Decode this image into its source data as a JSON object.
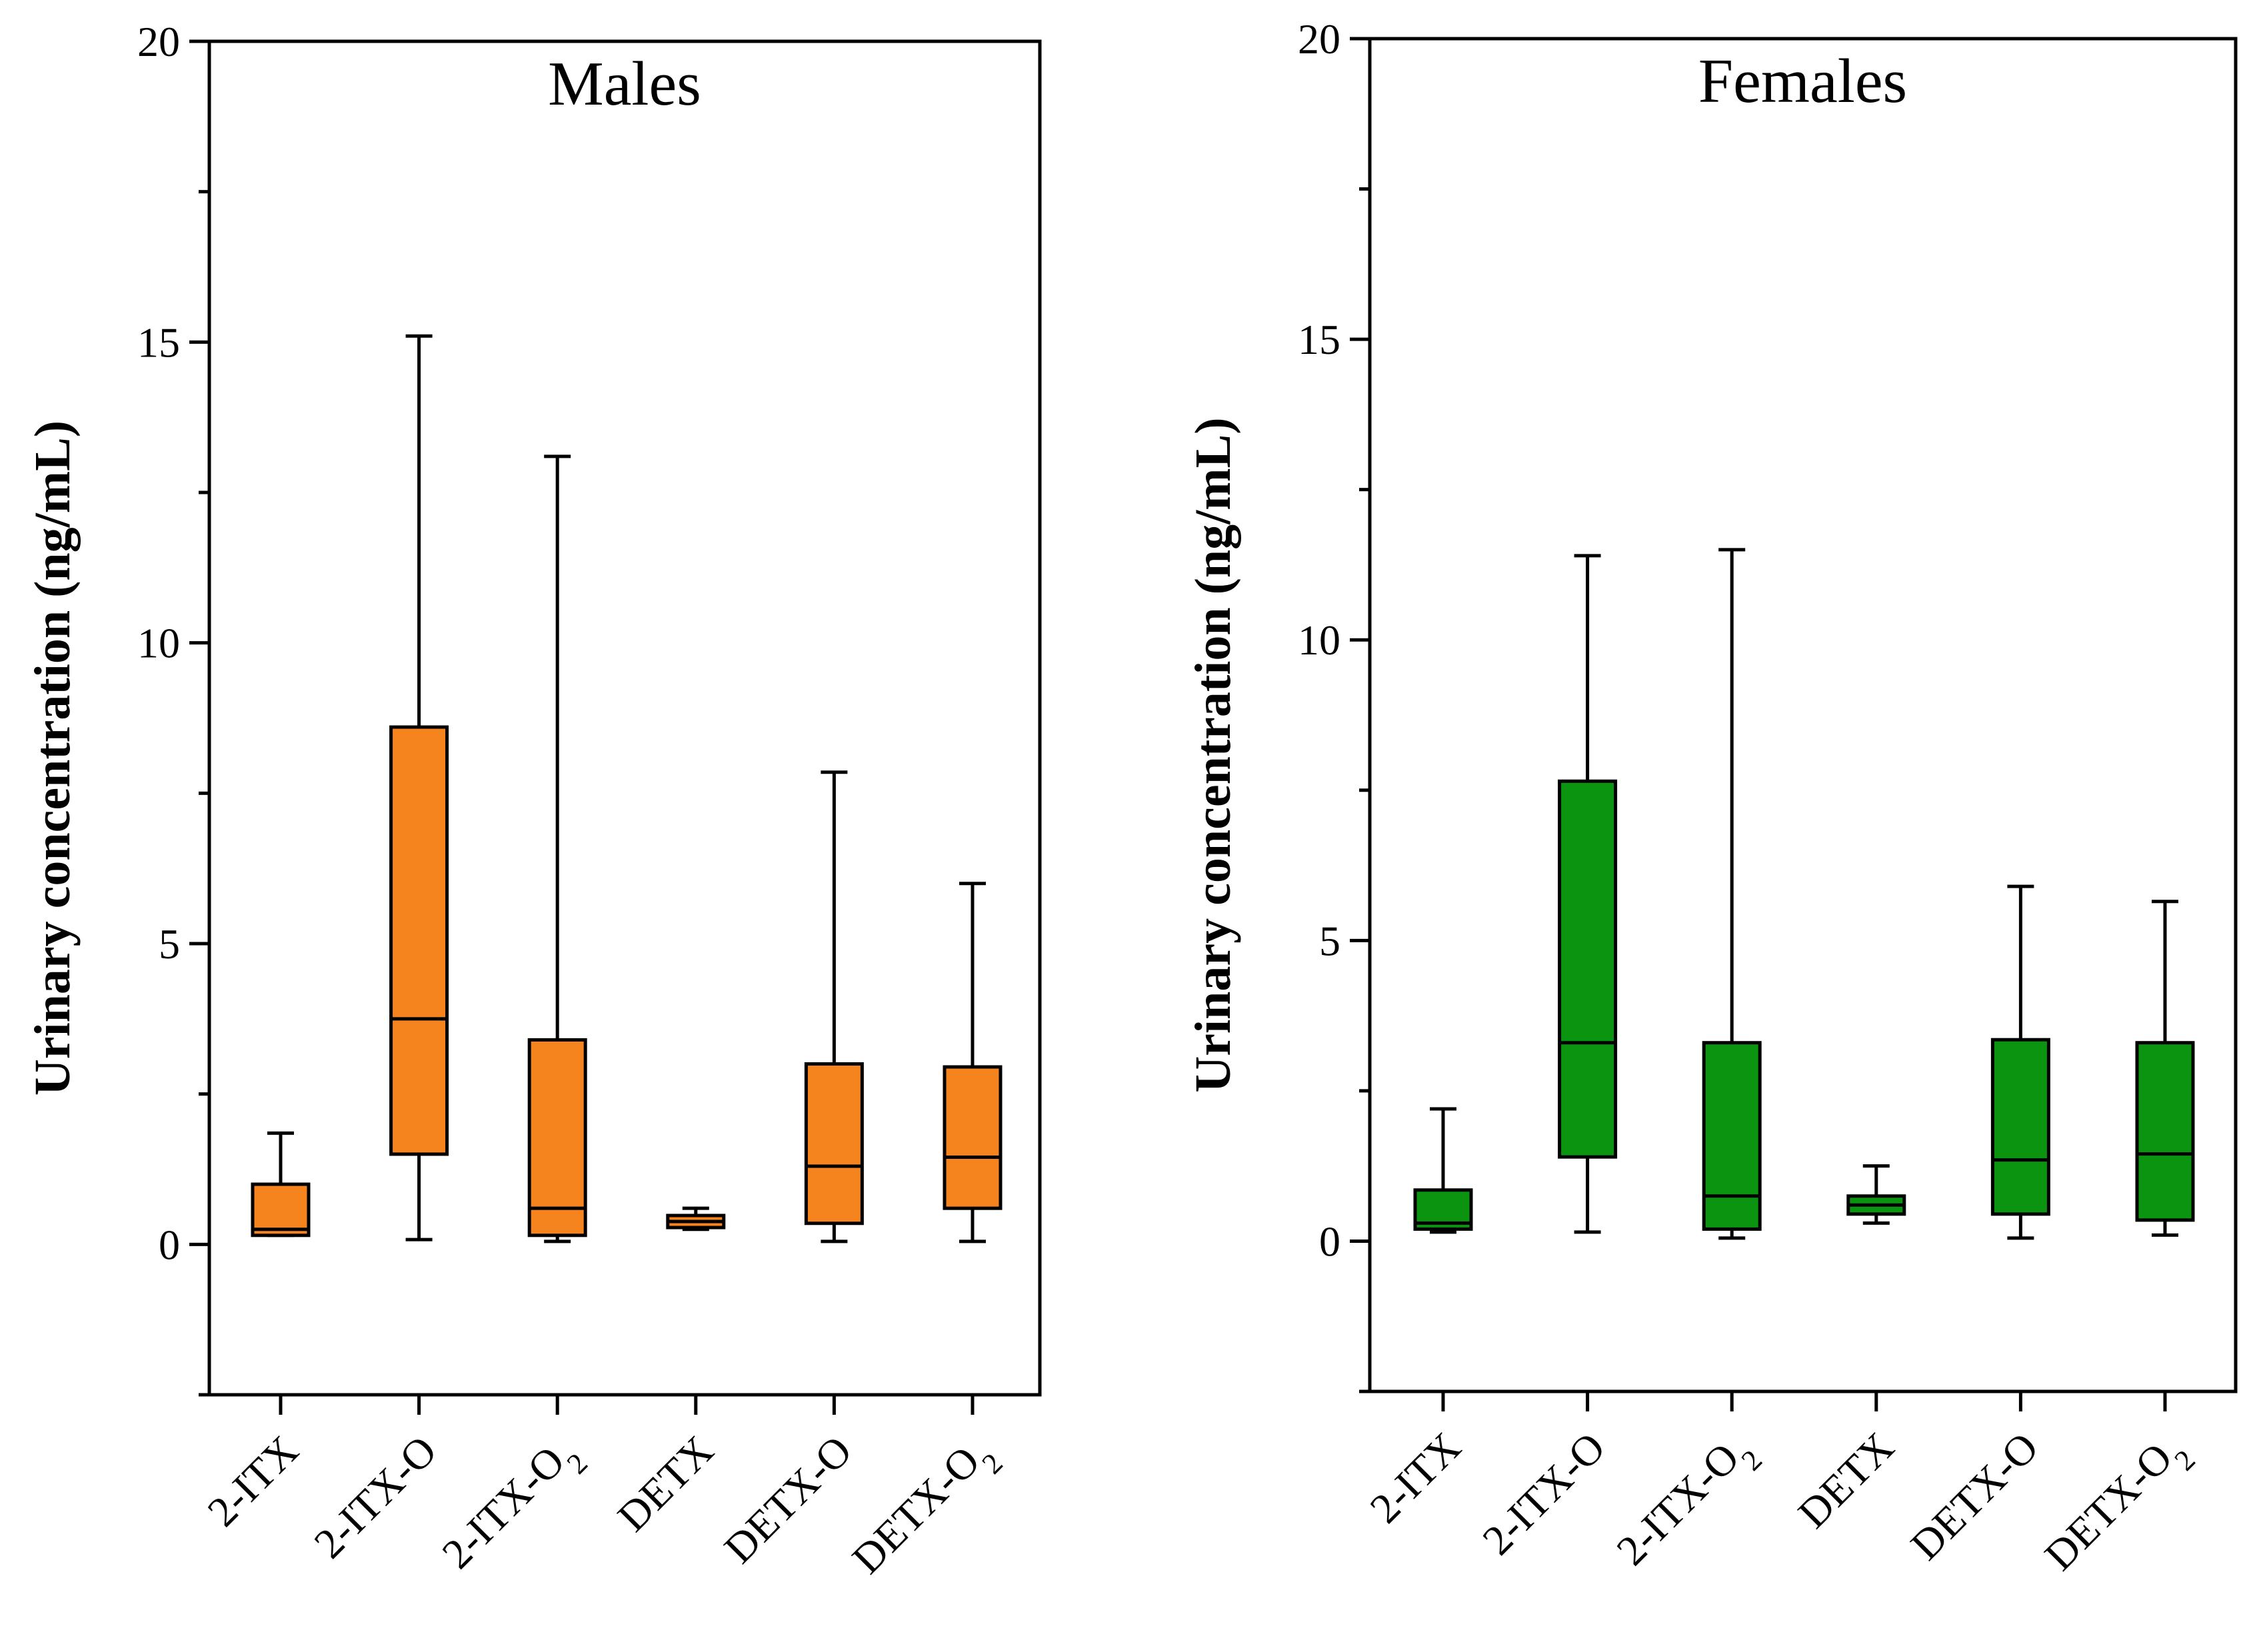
{
  "figure": {
    "background": "#ffffff"
  },
  "chart_data": [
    {
      "type": "box",
      "title": "Males",
      "ylabel": "Urinary concentration (ng/mL)",
      "xlabel": "",
      "ylim": [
        -2.5,
        20
      ],
      "yticks": [
        0,
        5,
        10,
        15,
        20
      ],
      "ytick_labels": [
        "0",
        "5",
        "10",
        "15",
        "20"
      ],
      "minor_yticks": [
        -2.5,
        2.5,
        7.5,
        12.5,
        17.5
      ],
      "box_color": "#F5841F",
      "categories": [
        {
          "base": "2-ITX",
          "sub": "",
          "label": "2-ITX"
        },
        {
          "base": "2-ITX-O",
          "sub": "",
          "label": "2-ITX-O"
        },
        {
          "base": "2-ITX-O",
          "sub": "2",
          "label": "2-ITX-O2"
        },
        {
          "base": "DETX",
          "sub": "",
          "label": "DETX"
        },
        {
          "base": "DETX-O",
          "sub": "",
          "label": "DETX-O"
        },
        {
          "base": "DETX-O",
          "sub": "2",
          "label": "DETX-O2"
        }
      ],
      "boxes": [
        {
          "whisker_low": 0.15,
          "q1": 0.15,
          "median": 0.25,
          "q3": 1.0,
          "whisker_high": 1.85
        },
        {
          "whisker_low": 0.08,
          "q1": 1.5,
          "median": 3.75,
          "q3": 8.6,
          "whisker_high": 15.1
        },
        {
          "whisker_low": 0.05,
          "q1": 0.15,
          "median": 0.6,
          "q3": 3.4,
          "whisker_high": 13.1
        },
        {
          "whisker_low": 0.25,
          "q1": 0.28,
          "median": 0.38,
          "q3": 0.48,
          "whisker_high": 0.6
        },
        {
          "whisker_low": 0.05,
          "q1": 0.35,
          "median": 1.3,
          "q3": 3.0,
          "whisker_high": 7.85
        },
        {
          "whisker_low": 0.05,
          "q1": 0.6,
          "median": 1.45,
          "q3": 2.95,
          "whisker_high": 6.0
        }
      ]
    },
    {
      "type": "box",
      "title": "Females",
      "ylabel": "Urinary concentration (ng/mL)",
      "xlabel": "",
      "ylim": [
        -2.5,
        20
      ],
      "yticks": [
        0,
        5,
        10,
        15,
        20
      ],
      "ytick_labels": [
        "0",
        "5",
        "10",
        "15",
        "20"
      ],
      "minor_yticks": [
        -2.5,
        2.5,
        7.5,
        12.5,
        17.5
      ],
      "box_color": "#0A9410",
      "categories": [
        {
          "base": "2-ITX",
          "sub": "",
          "label": "2-ITX"
        },
        {
          "base": "2-ITX-O",
          "sub": "",
          "label": "2-ITX-O"
        },
        {
          "base": "2-ITX-O",
          "sub": "2",
          "label": "2-ITX-O2"
        },
        {
          "base": "DETX",
          "sub": "",
          "label": "DETX"
        },
        {
          "base": "DETX-O",
          "sub": "",
          "label": "DETX-O"
        },
        {
          "base": "DETX-O",
          "sub": "2",
          "label": "DETX-O2"
        }
      ],
      "boxes": [
        {
          "whisker_low": 0.15,
          "q1": 0.2,
          "median": 0.3,
          "q3": 0.85,
          "whisker_high": 2.2
        },
        {
          "whisker_low": 0.15,
          "q1": 1.4,
          "median": 3.3,
          "q3": 7.65,
          "whisker_high": 11.4
        },
        {
          "whisker_low": 0.05,
          "q1": 0.2,
          "median": 0.75,
          "q3": 3.3,
          "whisker_high": 11.5
        },
        {
          "whisker_low": 0.3,
          "q1": 0.45,
          "median": 0.6,
          "q3": 0.75,
          "whisker_high": 1.25
        },
        {
          "whisker_low": 0.05,
          "q1": 0.45,
          "median": 1.35,
          "q3": 3.35,
          "whisker_high": 5.9
        },
        {
          "whisker_low": 0.1,
          "q1": 0.35,
          "median": 1.45,
          "q3": 3.3,
          "whisker_high": 5.65
        }
      ]
    }
  ]
}
